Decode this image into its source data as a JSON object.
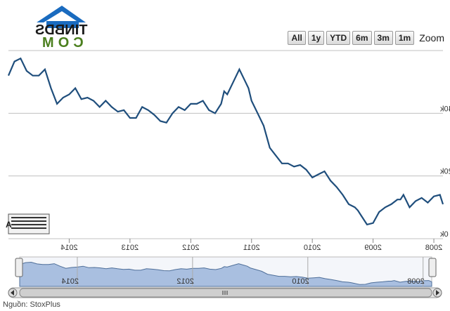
{
  "logo": {
    "line1": "TINBDS",
    "line2": "COM"
  },
  "zoom": {
    "label": "Zoom",
    "buttons": [
      "1m",
      "3m",
      "6m",
      "YTD",
      "1y",
      "All"
    ]
  },
  "source": "Nguồn: StoxPlus",
  "colors": {
    "line": "#1f4e7c",
    "grid": "#c0c0c0",
    "navigator_fill": "#a9bfe0",
    "navigator_line": "#4f6f99",
    "logo_blue": "#1a6bbf",
    "logo_green": "#4b7f1e"
  },
  "chart_data": {
    "type": "line",
    "title": "",
    "xlabel": "",
    "ylabel": "",
    "mirrored": true,
    "y_ticks": [
      "0k",
      "20k",
      "40k"
    ],
    "y_tick_values": [
      0,
      20000,
      40000
    ],
    "ylim": [
      0,
      60000
    ],
    "x_ticks": [
      "2008",
      "2009",
      "2010",
      "2011",
      "2012",
      "2013",
      "2014"
    ],
    "x_tick_years": [
      2008,
      2009,
      2010,
      2011,
      2012,
      2013,
      2014
    ],
    "xlim": [
      2007.85,
      2015.0
    ],
    "series": [
      {
        "x": [
          2007.85,
          2007.9,
          2008.0,
          2008.1,
          2008.2,
          2008.3,
          2008.4,
          2008.5,
          2008.55,
          2008.6,
          2008.7,
          2008.8,
          2008.9,
          2009.0,
          2009.1,
          2009.2,
          2009.25,
          2009.3,
          2009.4,
          2009.5,
          2009.6,
          2009.7,
          2009.8,
          2009.9,
          2010.0,
          2010.1,
          2010.2,
          2010.3,
          2010.4,
          2010.5,
          2010.6,
          2010.7,
          2010.8,
          2010.9,
          2011.0,
          2011.05,
          2011.1,
          2011.2,
          2011.3,
          2011.4,
          2011.45,
          2011.5,
          2011.6,
          2011.7,
          2011.8,
          2011.9,
          2012.0,
          2012.1,
          2012.2,
          2012.3,
          2012.4,
          2012.5,
          2012.6,
          2012.7,
          2012.8,
          2012.9,
          2013.0,
          2013.1,
          2013.2,
          2013.3,
          2013.4,
          2013.5,
          2013.6,
          2013.7,
          2013.8,
          2013.9,
          2014.0,
          2014.1,
          2014.2,
          2014.3,
          2014.4,
          2014.5,
          2014.6,
          2014.7,
          2014.8,
          2014.9,
          2015.0
        ],
        "y": [
          11000,
          14000,
          13500,
          11500,
          13000,
          12000,
          10000,
          14000,
          12500,
          12500,
          11000,
          10000,
          8500,
          5000,
          4500,
          7500,
          9000,
          10000,
          11000,
          14000,
          16500,
          18500,
          21500,
          20500,
          19500,
          22000,
          23500,
          23000,
          24000,
          24000,
          26500,
          29000,
          36000,
          40000,
          44000,
          48000,
          50000,
          54000,
          50000,
          46000,
          47000,
          43000,
          40000,
          41000,
          44000,
          43000,
          43000,
          41000,
          42000,
          40000,
          37000,
          37500,
          39500,
          41000,
          42000,
          38500,
          38500,
          41000,
          40500,
          42000,
          44000,
          42000,
          44000,
          45000,
          44500,
          48000,
          46000,
          45000,
          43000,
          48000,
          54000,
          52000,
          52000,
          53500,
          57500,
          56500,
          52000
        ]
      }
    ],
    "navigator": {
      "x_ticks": [
        "2008",
        "2010",
        "2012",
        "2014"
      ],
      "x_tick_years": [
        2008,
        2010,
        2012,
        2014
      ]
    }
  }
}
